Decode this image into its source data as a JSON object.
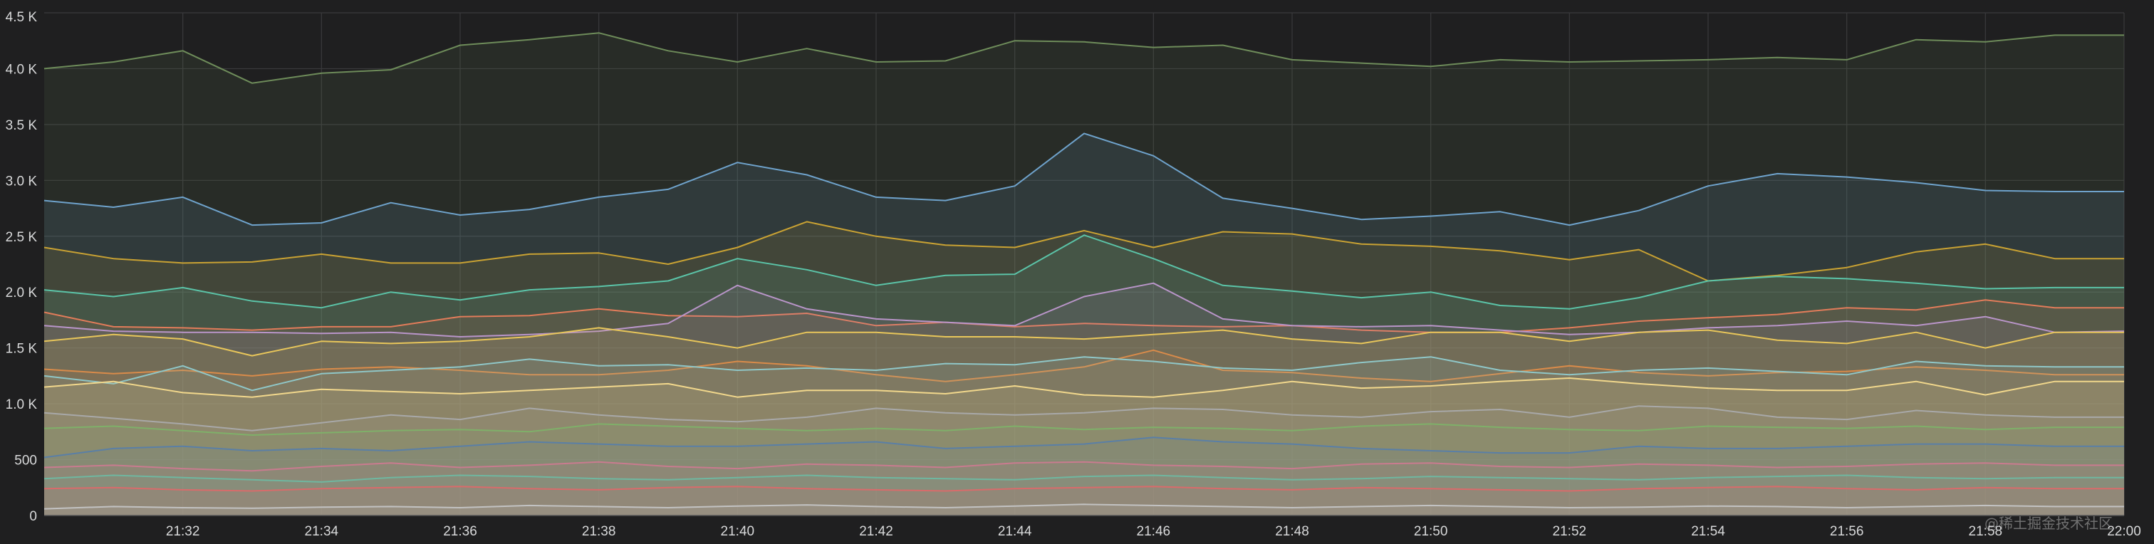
{
  "watermark": "@稀土掘金技术社区",
  "chart_data": {
    "type": "area",
    "title": "",
    "xlabel": "",
    "ylabel": "",
    "grid": true,
    "legend": "none",
    "ylim": [
      0,
      4500
    ],
    "y_ticks": [
      0,
      500,
      1000,
      1500,
      2000,
      2500,
      3000,
      3500,
      4000,
      4500
    ],
    "y_tick_labels": [
      "0",
      "500",
      "1.0 K",
      "1.5 K",
      "2.0 K",
      "2.5 K",
      "3.0 K",
      "3.5 K",
      "4.0 K",
      "4.5 K"
    ],
    "x": [
      "21:30",
      "21:31",
      "21:32",
      "21:33",
      "21:34",
      "21:35",
      "21:36",
      "21:37",
      "21:38",
      "21:39",
      "21:40",
      "21:41",
      "21:42",
      "21:43",
      "21:44",
      "21:45",
      "21:46",
      "21:47",
      "21:48",
      "21:49",
      "21:50",
      "21:51",
      "21:52",
      "21:53",
      "21:54",
      "21:55",
      "21:56",
      "21:57",
      "21:58",
      "21:59",
      "22:00"
    ],
    "x_ticks": [
      "21:32",
      "21:34",
      "21:36",
      "21:38",
      "21:40",
      "21:42",
      "21:44",
      "21:46",
      "21:48",
      "21:50",
      "21:52",
      "21:54",
      "21:56",
      "21:58",
      "22:00"
    ],
    "series": [
      {
        "color": "#6e8c5a",
        "values": [
          4000,
          4060,
          4160,
          3870,
          3960,
          3990,
          4210,
          4260,
          4320,
          4160,
          4060,
          4180,
          4060,
          4070,
          4250,
          4240,
          4190,
          4210,
          4080,
          4050,
          4020,
          4080,
          4060,
          4070,
          4080,
          4100,
          4080,
          4260,
          4240,
          4300,
          4300
        ]
      },
      {
        "color": "#6fa3cc",
        "values": [
          2820,
          2760,
          2850,
          2600,
          2620,
          2800,
          2690,
          2740,
          2850,
          2920,
          3160,
          3050,
          2850,
          2820,
          2950,
          3420,
          3220,
          2840,
          2750,
          2650,
          2680,
          2720,
          2600,
          2730,
          2950,
          3060,
          3030,
          2980,
          2910,
          2900,
          2900
        ]
      },
      {
        "color": "#c9a233",
        "values": [
          2400,
          2300,
          2260,
          2270,
          2340,
          2260,
          2260,
          2340,
          2350,
          2250,
          2400,
          2630,
          2500,
          2420,
          2400,
          2550,
          2400,
          2540,
          2520,
          2430,
          2410,
          2370,
          2290,
          2380,
          2100,
          2150,
          2220,
          2360,
          2430,
          2300,
          2300
        ]
      },
      {
        "color": "#5bc4a8",
        "values": [
          2020,
          1960,
          2040,
          1920,
          1860,
          2000,
          1930,
          2020,
          2050,
          2100,
          2300,
          2200,
          2060,
          2150,
          2160,
          2510,
          2300,
          2060,
          2010,
          1950,
          2000,
          1880,
          1850,
          1950,
          2100,
          2140,
          2120,
          2080,
          2030,
          2040,
          2040
        ]
      },
      {
        "color": "#e27c5a",
        "values": [
          1820,
          1690,
          1680,
          1660,
          1690,
          1690,
          1780,
          1790,
          1850,
          1790,
          1780,
          1810,
          1700,
          1730,
          1690,
          1720,
          1700,
          1690,
          1700,
          1660,
          1640,
          1640,
          1680,
          1740,
          1770,
          1800,
          1860,
          1840,
          1930,
          1860,
          1860
        ]
      },
      {
        "color": "#b995c9",
        "values": [
          1700,
          1650,
          1640,
          1640,
          1630,
          1640,
          1600,
          1620,
          1650,
          1720,
          2060,
          1850,
          1760,
          1730,
          1700,
          1960,
          2080,
          1760,
          1700,
          1690,
          1700,
          1660,
          1620,
          1640,
          1680,
          1700,
          1740,
          1700,
          1780,
          1640,
          1650
        ]
      },
      {
        "color": "#e8c65a",
        "values": [
          1560,
          1620,
          1580,
          1430,
          1560,
          1540,
          1560,
          1600,
          1680,
          1600,
          1500,
          1640,
          1640,
          1600,
          1600,
          1580,
          1620,
          1660,
          1580,
          1540,
          1640,
          1640,
          1560,
          1640,
          1660,
          1570,
          1540,
          1640,
          1500,
          1640,
          1640
        ]
      },
      {
        "color": "#d98b4a",
        "values": [
          1310,
          1270,
          1300,
          1250,
          1310,
          1330,
          1300,
          1260,
          1260,
          1300,
          1380,
          1340,
          1260,
          1200,
          1260,
          1330,
          1480,
          1300,
          1280,
          1230,
          1200,
          1270,
          1340,
          1280,
          1250,
          1280,
          1290,
          1330,
          1300,
          1260,
          1260
        ]
      },
      {
        "color": "#8fc7c8",
        "values": [
          1250,
          1180,
          1340,
          1120,
          1270,
          1300,
          1330,
          1400,
          1340,
          1350,
          1300,
          1320,
          1300,
          1360,
          1350,
          1420,
          1380,
          1320,
          1300,
          1370,
          1420,
          1300,
          1260,
          1300,
          1320,
          1290,
          1260,
          1380,
          1340,
          1330,
          1330
        ]
      },
      {
        "color": "#f2d88c",
        "values": [
          1150,
          1200,
          1100,
          1060,
          1130,
          1110,
          1090,
          1120,
          1150,
          1180,
          1060,
          1120,
          1120,
          1090,
          1160,
          1080,
          1060,
          1120,
          1200,
          1140,
          1160,
          1200,
          1230,
          1180,
          1140,
          1120,
          1120,
          1200,
          1080,
          1200,
          1200
        ]
      },
      {
        "color": "#a8a8a8",
        "values": [
          920,
          870,
          820,
          760,
          830,
          900,
          860,
          960,
          900,
          860,
          840,
          880,
          960,
          920,
          900,
          920,
          960,
          950,
          900,
          880,
          930,
          950,
          880,
          980,
          960,
          880,
          860,
          940,
          900,
          880,
          880
        ]
      },
      {
        "color": "#7fb069",
        "values": [
          780,
          800,
          760,
          720,
          740,
          760,
          770,
          750,
          820,
          800,
          780,
          760,
          780,
          760,
          800,
          770,
          790,
          780,
          760,
          800,
          820,
          790,
          770,
          760,
          800,
          790,
          780,
          800,
          770,
          790,
          790
        ]
      },
      {
        "color": "#5a7fa6",
        "values": [
          520,
          600,
          620,
          580,
          600,
          580,
          620,
          660,
          640,
          620,
          620,
          640,
          660,
          600,
          620,
          640,
          700,
          660,
          640,
          600,
          580,
          560,
          560,
          620,
          600,
          600,
          620,
          640,
          640,
          620,
          620
        ]
      },
      {
        "color": "#c97b8f",
        "values": [
          430,
          450,
          420,
          400,
          440,
          470,
          430,
          450,
          480,
          440,
          420,
          460,
          450,
          430,
          470,
          480,
          450,
          440,
          420,
          460,
          470,
          440,
          430,
          460,
          450,
          430,
          440,
          460,
          470,
          450,
          450
        ]
      },
      {
        "color": "#6fb7a0",
        "values": [
          330,
          360,
          340,
          320,
          300,
          340,
          360,
          350,
          330,
          320,
          340,
          360,
          340,
          330,
          320,
          350,
          360,
          340,
          320,
          330,
          350,
          340,
          330,
          320,
          340,
          350,
          360,
          340,
          330,
          340,
          340
        ]
      },
      {
        "color": "#d96b6b",
        "values": [
          240,
          250,
          230,
          220,
          240,
          250,
          260,
          240,
          230,
          250,
          260,
          240,
          230,
          220,
          240,
          250,
          260,
          240,
          230,
          250,
          240,
          230,
          220,
          240,
          250,
          260,
          240,
          230,
          250,
          240,
          240
        ]
      },
      {
        "color": "#c2c2c2",
        "values": [
          60,
          80,
          70,
          65,
          75,
          80,
          70,
          90,
          80,
          70,
          85,
          95,
          80,
          70,
          85,
          100,
          90,
          80,
          70,
          80,
          90,
          80,
          70,
          75,
          85,
          80,
          70,
          80,
          90,
          80,
          80
        ]
      }
    ]
  }
}
